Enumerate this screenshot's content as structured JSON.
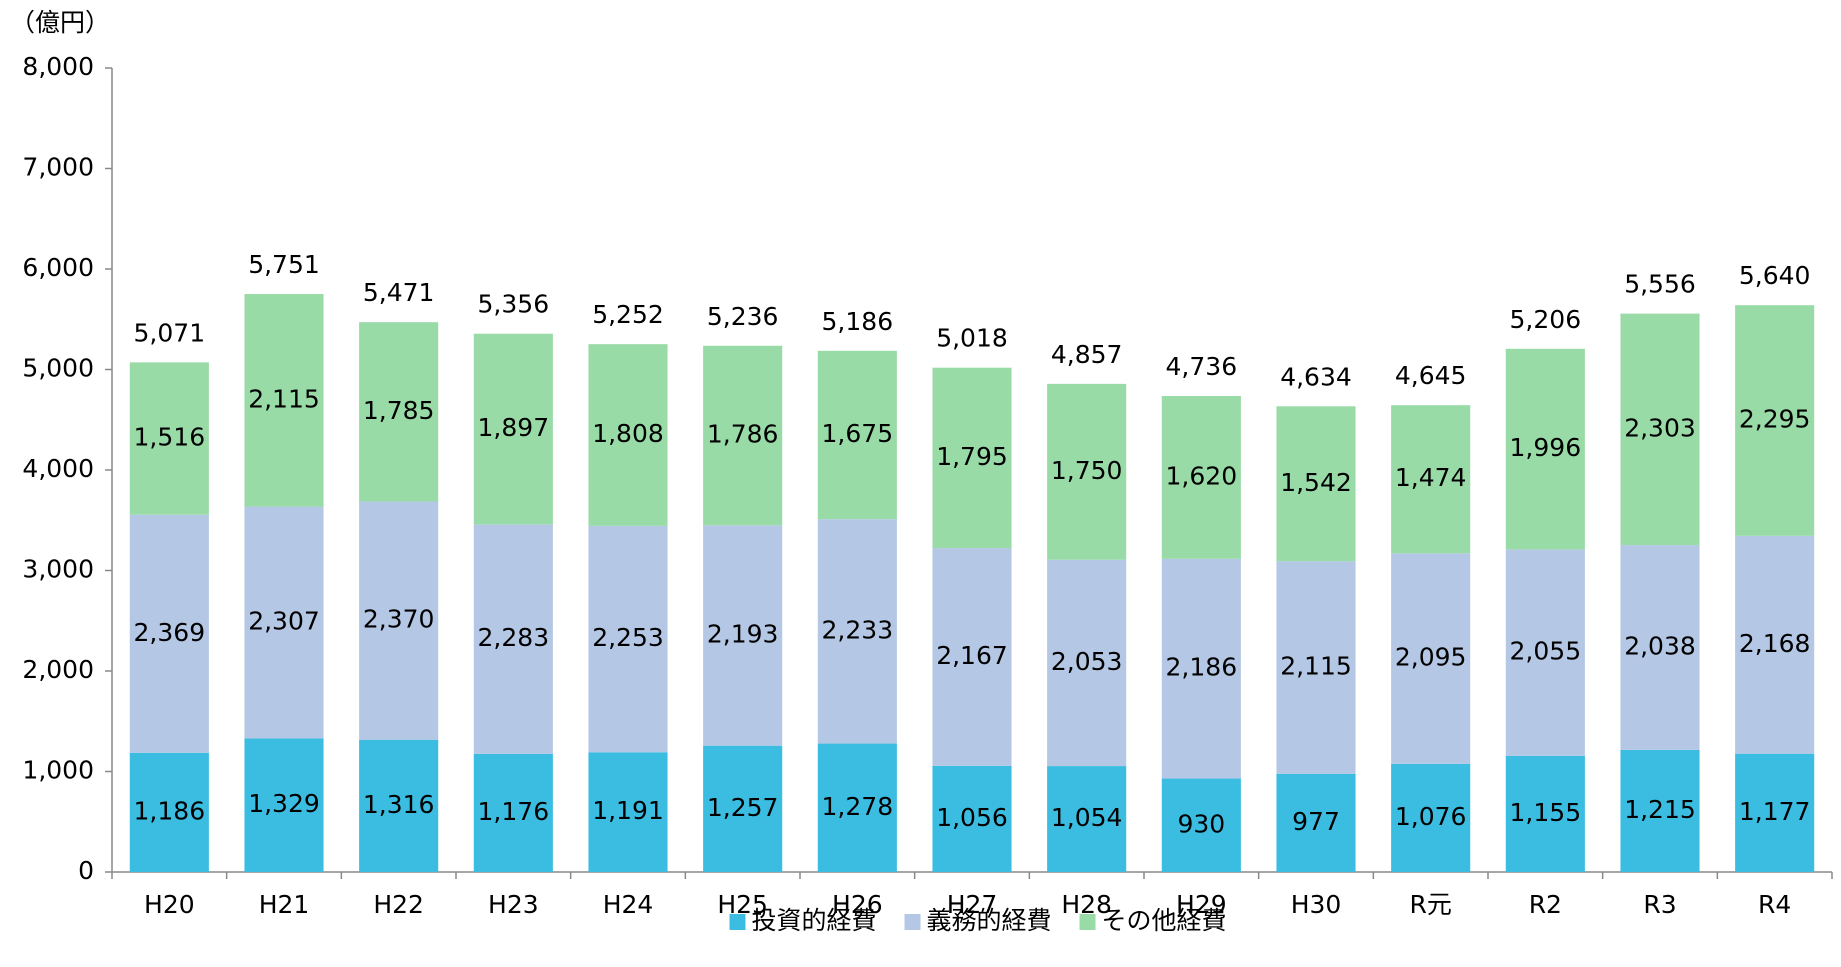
{
  "chart_data": {
    "type": "stacked_bar",
    "y_label": "（億円）",
    "categories": [
      "H20",
      "H21",
      "H22",
      "H23",
      "H24",
      "H25",
      "H26",
      "H27",
      "H28",
      "H29",
      "H30",
      "R元",
      "R2",
      "R3",
      "R4"
    ],
    "series": [
      {
        "name": "投資的経費",
        "color": "#3bbde2",
        "values": [
          1186,
          1329,
          1316,
          1176,
          1191,
          1257,
          1278,
          1056,
          1054,
          930,
          977,
          1076,
          1155,
          1215,
          1177
        ],
        "value_labels": [
          "1,186",
          "1,329",
          "1,316",
          "1,176",
          "1,191",
          "1,257",
          "1,278",
          "1,056",
          "1,054",
          "930",
          "977",
          "1,076",
          "1,155",
          "1,215",
          "1,177"
        ]
      },
      {
        "name": "義務的経費",
        "color": "#b4c7e4",
        "values": [
          2369,
          2307,
          2370,
          2283,
          2253,
          2193,
          2233,
          2167,
          2053,
          2186,
          2115,
          2095,
          2055,
          2038,
          2168
        ],
        "value_labels": [
          "2,369",
          "2,307",
          "2,370",
          "2,283",
          "2,253",
          "2,193",
          "2,233",
          "2,167",
          "2,053",
          "2,186",
          "2,115",
          "2,095",
          "2,055",
          "2,038",
          "2,168"
        ]
      },
      {
        "name": "その他経費",
        "color": "#99dba7",
        "values": [
          1516,
          2115,
          1785,
          1897,
          1808,
          1786,
          1675,
          1795,
          1750,
          1620,
          1542,
          1474,
          1996,
          2303,
          2295
        ],
        "value_labels": [
          "1,516",
          "2,115",
          "1,785",
          "1,897",
          "1,808",
          "1,786",
          "1,675",
          "1,795",
          "1,750",
          "1,620",
          "1,542",
          "1,474",
          "1,996",
          "2,303",
          "2,295"
        ]
      }
    ],
    "totals": [
      5071,
      5751,
      5471,
      5356,
      5252,
      5236,
      5186,
      5018,
      4857,
      4736,
      4634,
      4645,
      5206,
      5556,
      5640
    ],
    "total_labels": [
      "5,071",
      "5,751",
      "5,471",
      "5,356",
      "5,252",
      "5,236",
      "5,186",
      "5,018",
      "4,857",
      "4,736",
      "4,634",
      "4,645",
      "5,206",
      "5,556",
      "5,640"
    ],
    "ylim": [
      0,
      8000
    ],
    "yticks": [
      0,
      {
        "value": 1000,
        "label": "1,000"
      },
      {
        "value": 2000,
        "label": "2,000"
      },
      {
        "value": 3000,
        "label": "3,000"
      },
      {
        "value": 4000,
        "label": "4,000"
      },
      {
        "value": 5000,
        "label": "5,000"
      },
      {
        "value": 6000,
        "label": "6,000"
      },
      {
        "value": 7000,
        "label": "7,000"
      },
      {
        "value": 8000,
        "label": "8,000"
      }
    ],
    "legend": "bottom",
    "grid": false
  }
}
